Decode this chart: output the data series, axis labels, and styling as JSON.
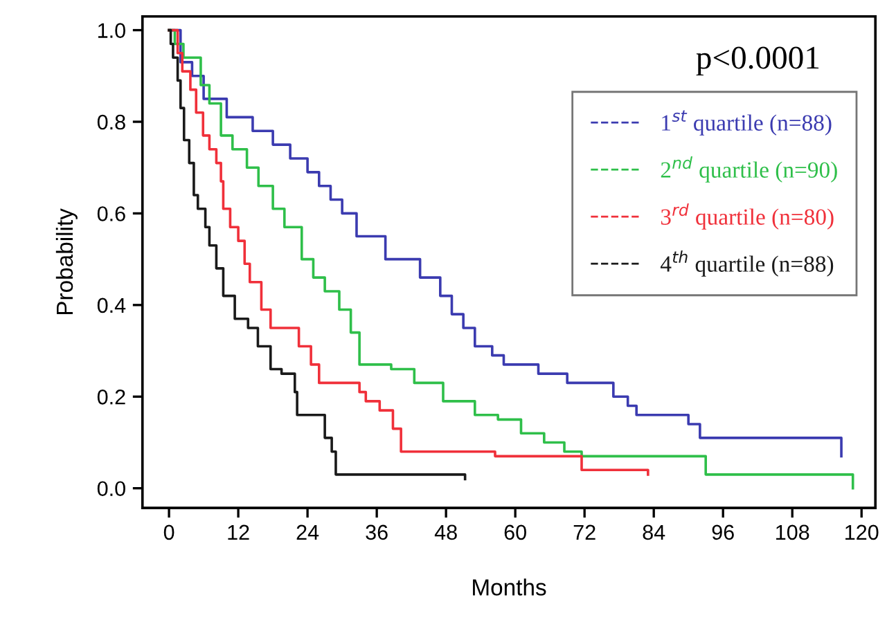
{
  "chart_data": {
    "type": "step",
    "xlabel": "Months",
    "ylabel": "Probability",
    "xlim": [
      -4.6,
      122.4
    ],
    "ylim": [
      -0.043,
      1.03
    ],
    "xticks": [
      0,
      12,
      24,
      36,
      48,
      60,
      72,
      84,
      96,
      108,
      120
    ],
    "yticks": [
      {
        "value": 0,
        "label": "0.0"
      },
      {
        "value": 0.2,
        "label": "0.2"
      },
      {
        "value": 0.4,
        "label": "0.4"
      },
      {
        "value": 0.6,
        "label": "0.6"
      },
      {
        "value": 0.8,
        "label": "0.8"
      },
      {
        "value": 1.0,
        "label": "1.0"
      }
    ],
    "grid": false,
    "legend": "top right",
    "line_style": "solid",
    "marker": "none",
    "annotations": [
      "p<0.0001"
    ],
    "series": [
      {
        "name": "1$^{st}$ quartile (n=88)",
        "color": "#3b3bb0",
        "x": [
          0,
          2,
          4,
          6,
          10,
          14.5,
          18,
          21,
          24,
          26,
          28,
          30,
          32.5,
          37.5,
          43.5,
          47,
          49,
          51,
          53,
          56,
          58,
          64,
          69,
          77,
          79.5,
          81,
          90,
          92,
          116.5
        ],
        "values": [
          1.0,
          0.93,
          0.9,
          0.85,
          0.81,
          0.78,
          0.75,
          0.72,
          0.69,
          0.66,
          0.63,
          0.6,
          0.55,
          0.5,
          0.46,
          0.42,
          0.38,
          0.35,
          0.31,
          0.29,
          0.27,
          0.25,
          0.23,
          0.2,
          0.18,
          0.16,
          0.14,
          0.11,
          0.07
        ]
      },
      {
        "name": "2$^{nd}$ quartile (n=90)",
        "color": "#2fbf4a",
        "x": [
          0,
          1,
          2.5,
          5.5,
          7,
          9,
          11,
          13.5,
          15.5,
          18,
          20,
          23,
          25,
          27,
          29.5,
          31.5,
          33,
          38.5,
          42.5,
          47.5,
          53,
          57,
          61,
          65,
          68.5,
          71.5,
          93,
          118.5
        ],
        "values": [
          1.0,
          0.97,
          0.94,
          0.88,
          0.84,
          0.77,
          0.74,
          0.7,
          0.66,
          0.61,
          0.57,
          0.5,
          0.46,
          0.43,
          0.39,
          0.34,
          0.27,
          0.26,
          0.23,
          0.19,
          0.16,
          0.15,
          0.12,
          0.1,
          0.08,
          0.07,
          0.03,
          0.0
        ]
      },
      {
        "name": "3$^{rd}$ quartile (n=80)",
        "color": "#f0303a",
        "x": [
          0,
          1.5,
          2.3,
          3.7,
          4.7,
          5.9,
          7,
          8.2,
          9,
          9.4,
          10.6,
          12,
          13.1,
          14,
          16,
          17.6,
          22.5,
          24.6,
          26,
          33,
          34.1,
          36.5,
          38.8,
          40.2,
          56.5,
          71.5,
          83
        ],
        "values": [
          1.0,
          0.95,
          0.91,
          0.87,
          0.82,
          0.77,
          0.74,
          0.71,
          0.67,
          0.61,
          0.57,
          0.54,
          0.49,
          0.45,
          0.39,
          0.35,
          0.31,
          0.27,
          0.23,
          0.21,
          0.19,
          0.17,
          0.13,
          0.08,
          0.07,
          0.04,
          0.03
        ]
      },
      {
        "name": "4$^{th}$ quartile (n=88)",
        "color": "#1a1a1a",
        "x": [
          0,
          0.3,
          0.7,
          1.5,
          2,
          2.6,
          3.5,
          4.3,
          5,
          6.3,
          7,
          8.2,
          9.4,
          11.4,
          13.7,
          15.4,
          17.6,
          19.5,
          21.8,
          22.2,
          27,
          28.2,
          28.9,
          51.3
        ],
        "values": [
          1.0,
          0.97,
          0.94,
          0.89,
          0.83,
          0.76,
          0.71,
          0.64,
          0.61,
          0.57,
          0.53,
          0.48,
          0.42,
          0.37,
          0.35,
          0.31,
          0.26,
          0.25,
          0.21,
          0.16,
          0.11,
          0.08,
          0.03,
          0.02
        ]
      }
    ]
  }
}
